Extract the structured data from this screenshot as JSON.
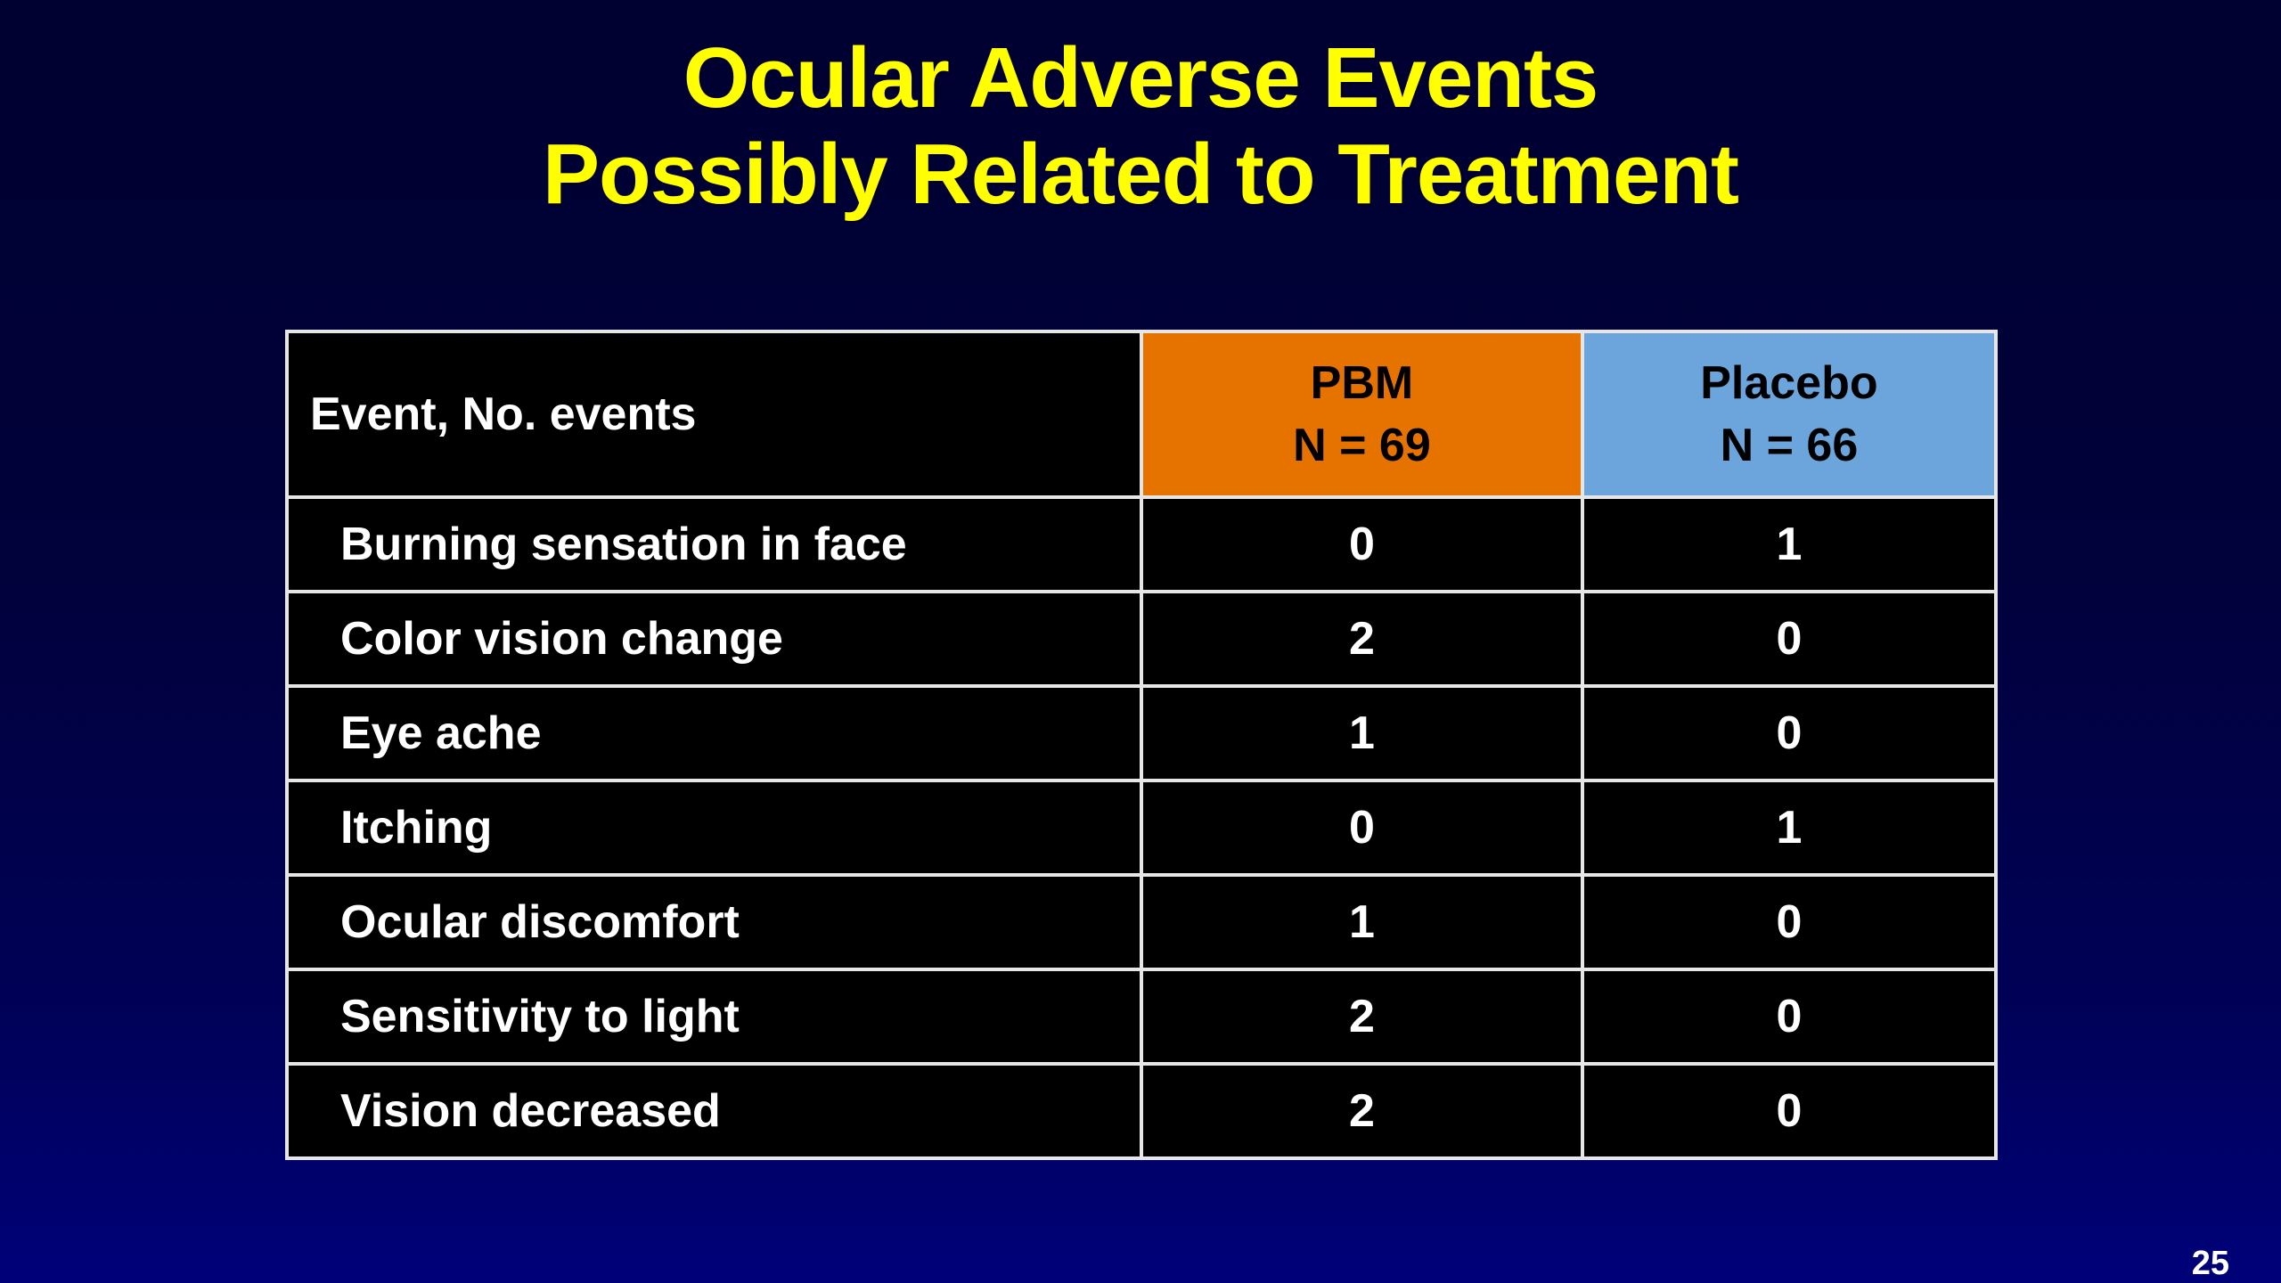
{
  "slide": {
    "title_line1": "Ocular Adverse Events",
    "title_line2": "Possibly Related to Treatment",
    "page_number": "25",
    "colors": {
      "title_text": "#FFFF00",
      "pbm_header_bg": "#E67300",
      "placebo_header_bg": "#6BA5DB",
      "cell_bg": "#000000",
      "cell_border": "#E6E6E6",
      "background_top": "#00012F",
      "background_bottom": "#000178"
    }
  },
  "table": {
    "col1_header": "Event, No. events",
    "col2_header_line1": "PBM",
    "col2_header_line2": "N = 69",
    "col3_header_line1": "Placebo",
    "col3_header_line2": "N = 66",
    "rows": [
      {
        "event": "Burning sensation in face",
        "pbm": "0",
        "placebo": "1"
      },
      {
        "event": "Color vision change",
        "pbm": "2",
        "placebo": "0"
      },
      {
        "event": "Eye ache",
        "pbm": "1",
        "placebo": "0"
      },
      {
        "event": "Itching",
        "pbm": "0",
        "placebo": "1"
      },
      {
        "event": "Ocular discomfort",
        "pbm": "1",
        "placebo": "0"
      },
      {
        "event": "Sensitivity to light",
        "pbm": "2",
        "placebo": "0"
      },
      {
        "event": "Vision decreased",
        "pbm": "2",
        "placebo": "0"
      }
    ]
  }
}
